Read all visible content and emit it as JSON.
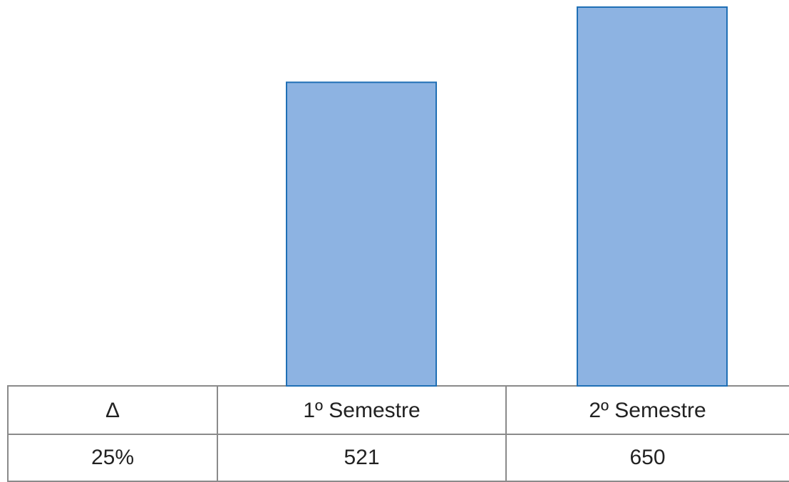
{
  "chart_data": {
    "type": "bar",
    "categories": [
      "1º Semestre",
      "2º Semestre"
    ],
    "values": [
      521,
      650
    ],
    "color": "#8db3e2",
    "edge_color": "#1f6fb5",
    "delta_label": "Δ",
    "delta": "25%"
  }
}
